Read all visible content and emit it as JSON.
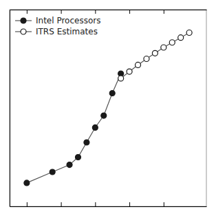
{
  "chart_data": {
    "type": "line",
    "series": [
      {
        "name": "Intel Processors",
        "color": "#555555",
        "marker": "circle",
        "x": [
          1993,
          1996,
          1998,
          1999,
          2000,
          2001,
          2002,
          2003,
          2004
        ],
        "values": [
          0.3,
          0.5,
          0.7,
          1.0,
          2.0,
          4.0,
          7.0,
          20.0,
          50.0
        ]
      },
      {
        "name": "ITRS Estimates",
        "color": "#555555",
        "marker": "circle-open",
        "x": [
          2004,
          2005,
          2006,
          2007,
          2008,
          2009,
          2010,
          2011,
          2012
        ],
        "values": [
          40,
          55,
          75,
          100,
          130,
          170,
          215,
          270,
          340
        ]
      }
    ],
    "log": "y",
    "xlim": [
      1991,
      2014
    ],
    "xticks": [
      1993,
      1997,
      2001,
      2005,
      2009
    ],
    "ylim": [
      0.1,
      1000
    ],
    "yticks": [],
    "tick_labels": false,
    "grid": false,
    "legend": "upper-left"
  }
}
